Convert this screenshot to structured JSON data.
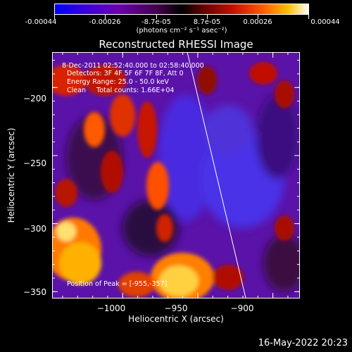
{
  "colorbar": {
    "tick_labels": [
      "-0.00044",
      "-0.00026",
      "-8.7e-05",
      "8.7e-05",
      "0.00026",
      "0.00044"
    ],
    "units": "(photons cm⁻² s⁻¹ asec⁻²)"
  },
  "chart_data": {
    "type": "heatmap",
    "title": "Reconstructed RHESSI Image",
    "xlabel": "Heliocentric X (arcsec)",
    "ylabel": "Heliocentric Y (arcsec)",
    "xlim": [
      -1047,
      -882
    ],
    "ylim": [
      -355,
      -174
    ],
    "xticks": [
      -1000,
      -950,
      -900
    ],
    "yticks": [
      -200,
      -250,
      -300,
      -350
    ],
    "xtick_labels": [
      "−1000",
      "−950",
      "−900"
    ],
    "ytick_labels": [
      "−200",
      "−250",
      "−300",
      "−350"
    ],
    "color_range": [
      -0.00044,
      0.00044
    ],
    "limb_line": {
      "x": [
        -957,
        -918
      ],
      "y": [
        -174,
        -355
      ]
    },
    "annotations": {
      "time_range": "8-Dec-2011 02:52:40.000 to 02:58:40.000",
      "detectors": "Detectors: 3F 4F 5F 6F 7F 8F, Att 0",
      "energy": "Energy Range: 25.0 - 50.0 keV",
      "clean": "Clean     Total counts: 1.66E+04",
      "peak": "Position of Peak = [-955,-357]"
    }
  },
  "footer": {
    "date": "16-May-2022 20:23"
  }
}
